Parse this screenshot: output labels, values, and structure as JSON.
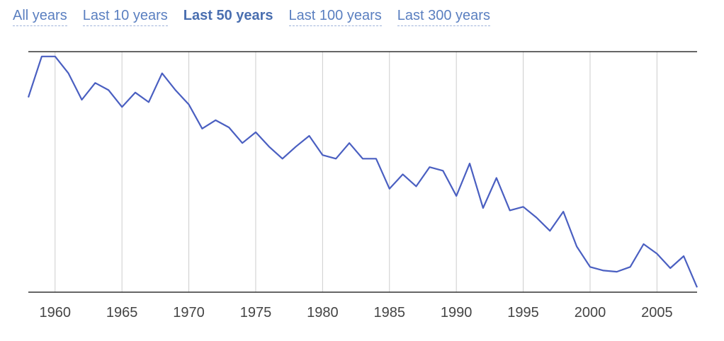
{
  "tabs": [
    {
      "label": "All years",
      "active": false
    },
    {
      "label": "Last 10 years",
      "active": false
    },
    {
      "label": "Last 50 years",
      "active": true
    },
    {
      "label": "Last 100 years",
      "active": false
    },
    {
      "label": "Last 300 years",
      "active": false
    }
  ],
  "colors": {
    "line": "#4a5fc1",
    "grid": "#cccccc",
    "axis": "#333333",
    "tab": "#5a7fc0",
    "tab_active": "#4a6fb0"
  },
  "chart_data": {
    "type": "line",
    "title": "",
    "xlabel": "",
    "ylabel": "",
    "xlim": [
      1958,
      2008
    ],
    "ylim": [
      0,
      100
    ],
    "grid": "vertical",
    "x_ticks": [
      "1960",
      "1965",
      "1970",
      "1975",
      "1980",
      "1985",
      "1990",
      "1995",
      "2000",
      "2005"
    ],
    "series": [
      {
        "values": [
          {
            "x": 1958,
            "y": 81
          },
          {
            "x": 1959,
            "y": 98
          },
          {
            "x": 1960,
            "y": 98
          },
          {
            "x": 1961,
            "y": 91
          },
          {
            "x": 1962,
            "y": 80
          },
          {
            "x": 1963,
            "y": 87
          },
          {
            "x": 1964,
            "y": 84
          },
          {
            "x": 1965,
            "y": 77
          },
          {
            "x": 1966,
            "y": 83
          },
          {
            "x": 1967,
            "y": 79
          },
          {
            "x": 1968,
            "y": 91
          },
          {
            "x": 1969,
            "y": 84
          },
          {
            "x": 1970,
            "y": 78
          },
          {
            "x": 1971,
            "y": 68
          },
          {
            "x": 1972,
            "y": 71.5
          },
          {
            "x": 1973,
            "y": 68.5
          },
          {
            "x": 1974,
            "y": 62
          },
          {
            "x": 1975,
            "y": 66.5
          },
          {
            "x": 1976,
            "y": 60.5
          },
          {
            "x": 1977,
            "y": 55.5
          },
          {
            "x": 1978,
            "y": 60.5
          },
          {
            "x": 1979,
            "y": 65
          },
          {
            "x": 1980,
            "y": 57
          },
          {
            "x": 1981,
            "y": 55.5
          },
          {
            "x": 1982,
            "y": 62
          },
          {
            "x": 1983,
            "y": 55.5
          },
          {
            "x": 1984,
            "y": 55.5
          },
          {
            "x": 1985,
            "y": 43
          },
          {
            "x": 1986,
            "y": 49
          },
          {
            "x": 1987,
            "y": 44
          },
          {
            "x": 1988,
            "y": 52
          },
          {
            "x": 1989,
            "y": 50.5
          },
          {
            "x": 1990,
            "y": 40
          },
          {
            "x": 1991,
            "y": 53.5
          },
          {
            "x": 1992,
            "y": 35
          },
          {
            "x": 1993,
            "y": 47.5
          },
          {
            "x": 1994,
            "y": 34
          },
          {
            "x": 1995,
            "y": 35.5
          },
          {
            "x": 1996,
            "y": 31
          },
          {
            "x": 1997,
            "y": 25.5
          },
          {
            "x": 1998,
            "y": 33.5
          },
          {
            "x": 1999,
            "y": 19
          },
          {
            "x": 2000,
            "y": 10.5
          },
          {
            "x": 2001,
            "y": 9
          },
          {
            "x": 2002,
            "y": 8.5
          },
          {
            "x": 2003,
            "y": 10.5
          },
          {
            "x": 2004,
            "y": 20
          },
          {
            "x": 2005,
            "y": 16
          },
          {
            "x": 2006,
            "y": 10
          },
          {
            "x": 2007,
            "y": 15
          },
          {
            "x": 2008,
            "y": 2
          }
        ]
      }
    ]
  }
}
